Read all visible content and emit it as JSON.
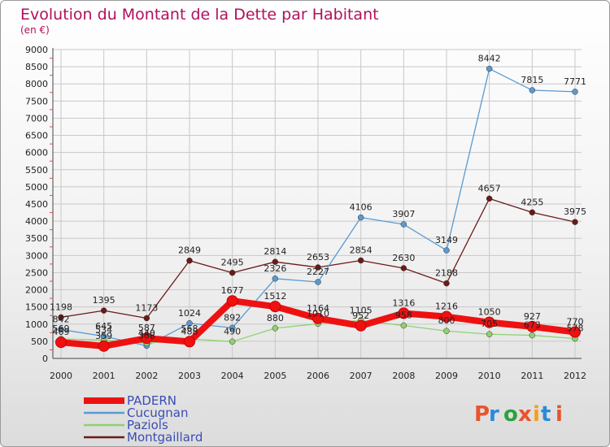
{
  "colors": {
    "title": "#b0115c",
    "grid": "#c8c8c8",
    "legend_text": "#3a4db5",
    "logo": [
      "#e8542c",
      "#2b8ad6",
      "#2aa33b",
      "#e8542c",
      "#f0a020",
      "#2b8ad6"
    ]
  },
  "logo_text": "Proxiti",
  "chart_data": {
    "type": "line",
    "title": "Evolution du Montant de la Dette par Habitant",
    "subtitle": "(en €)",
    "xlabel": "",
    "ylabel": "",
    "categories": [
      "2000",
      "2001",
      "2002",
      "2003",
      "2004",
      "2005",
      "2006",
      "2007",
      "2008",
      "2009",
      "2010",
      "2011",
      "2012"
    ],
    "ylim": [
      0,
      9000
    ],
    "yticks": [
      0,
      500,
      1000,
      1500,
      2000,
      2500,
      3000,
      3500,
      4000,
      4500,
      5000,
      5500,
      6000,
      6500,
      7000,
      7500,
      8000,
      8500,
      9000
    ],
    "grid": true,
    "legend_position": "bottom-left",
    "series": [
      {
        "name": "Montgaillard",
        "color": "#6b1a1a",
        "values": [
          1198,
          1395,
          1173,
          2849,
          2495,
          2814,
          2653,
          2854,
          2630,
          2188,
          4657,
          4255,
          3975
        ],
        "labels": [
          "1198",
          "1395",
          "1173",
          "2849",
          "2495",
          "2814",
          "2653",
          "2854",
          "2630",
          "2188",
          "4657",
          "4255",
          "3975"
        ]
      },
      {
        "name": "Cucugnan",
        "color": "#5a9ad0",
        "values": [
          842,
          645,
          368,
          1024,
          892,
          2326,
          2227,
          4106,
          3907,
          3149,
          8442,
          7815,
          7771
        ],
        "labels": [
          "842",
          "645",
          "368",
          "1024",
          "892",
          "2326",
          "2227",
          "4106",
          "3907",
          "3149",
          "8442",
          "7815",
          "7771"
        ]
      },
      {
        "name": "Paziols",
        "color": "#8fd170",
        "values": [
          569,
          534,
          440,
          568,
          490,
          880,
          1010,
          1105,
          958,
          800,
          705,
          673,
          578
        ],
        "labels": [
          "569",
          "534",
          "440",
          "568",
          "490",
          "880",
          "1010",
          "1105",
          "958",
          "800",
          "705",
          "673",
          "578"
        ]
      },
      {
        "name": "PADERN",
        "color": "#ee1111",
        "values": [
          469,
          359,
          587,
          488,
          1677,
          1512,
          1164,
          952,
          1316,
          1216,
          1050,
          927,
          770
        ],
        "labels": [
          "469",
          "359",
          "587",
          "488",
          "1677",
          "1512",
          "1164",
          "952",
          "1316",
          "1216",
          "1050",
          "927",
          "770"
        ]
      }
    ],
    "legend": [
      "PADERN",
      "Cucugnan",
      "Paziols",
      "Montgaillard"
    ]
  }
}
